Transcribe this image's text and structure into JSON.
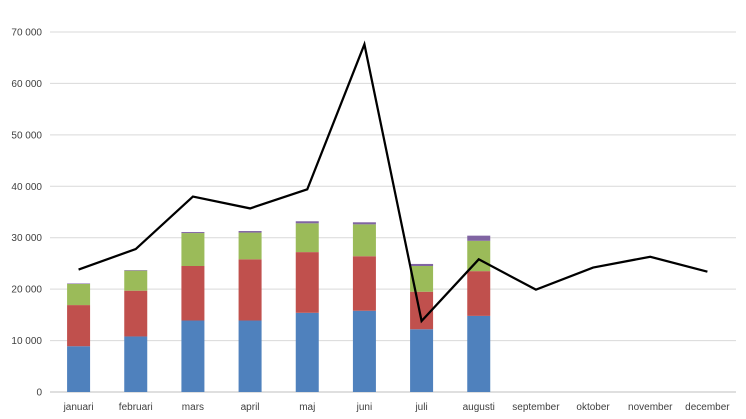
{
  "chart_data": {
    "type": "bar",
    "stacked": true,
    "categories": [
      "januari",
      "februari",
      "mars",
      "april",
      "maj",
      "juni",
      "juli",
      "augusti",
      "september",
      "oktober",
      "november",
      "december"
    ],
    "series": [
      {
        "type": "bar",
        "color": "#4f81bd",
        "values": [
          8900,
          10800,
          13900,
          13900,
          15400,
          15800,
          12200,
          14800,
          null,
          null,
          null,
          null
        ]
      },
      {
        "type": "bar",
        "color": "#c0504d",
        "values": [
          8000,
          8900,
          10600,
          11900,
          11800,
          10600,
          7300,
          8700,
          null,
          null,
          null,
          null
        ]
      },
      {
        "type": "bar",
        "color": "#9bbb59",
        "values": [
          4100,
          3900,
          6400,
          5200,
          5600,
          6200,
          5000,
          5900,
          null,
          null,
          null,
          null
        ]
      },
      {
        "type": "bar",
        "color": "#8064a2",
        "values": [
          100,
          100,
          200,
          300,
          400,
          400,
          400,
          1000,
          null,
          null,
          null,
          null
        ]
      },
      {
        "type": "line",
        "color": "#000000",
        "values": [
          23800,
          27800,
          38000,
          35700,
          39400,
          67600,
          13800,
          25800,
          19900,
          24200,
          26300,
          23400
        ]
      }
    ],
    "ylim": [
      0,
      70000
    ],
    "yticks": [
      0,
      10000,
      20000,
      30000,
      40000,
      50000,
      60000,
      70000
    ],
    "ytick_labels": [
      "0",
      "10 000",
      "20 000",
      "30 000",
      "40 000",
      "50 000",
      "60 000",
      "70 000"
    ],
    "grid": true,
    "legend": "none"
  }
}
